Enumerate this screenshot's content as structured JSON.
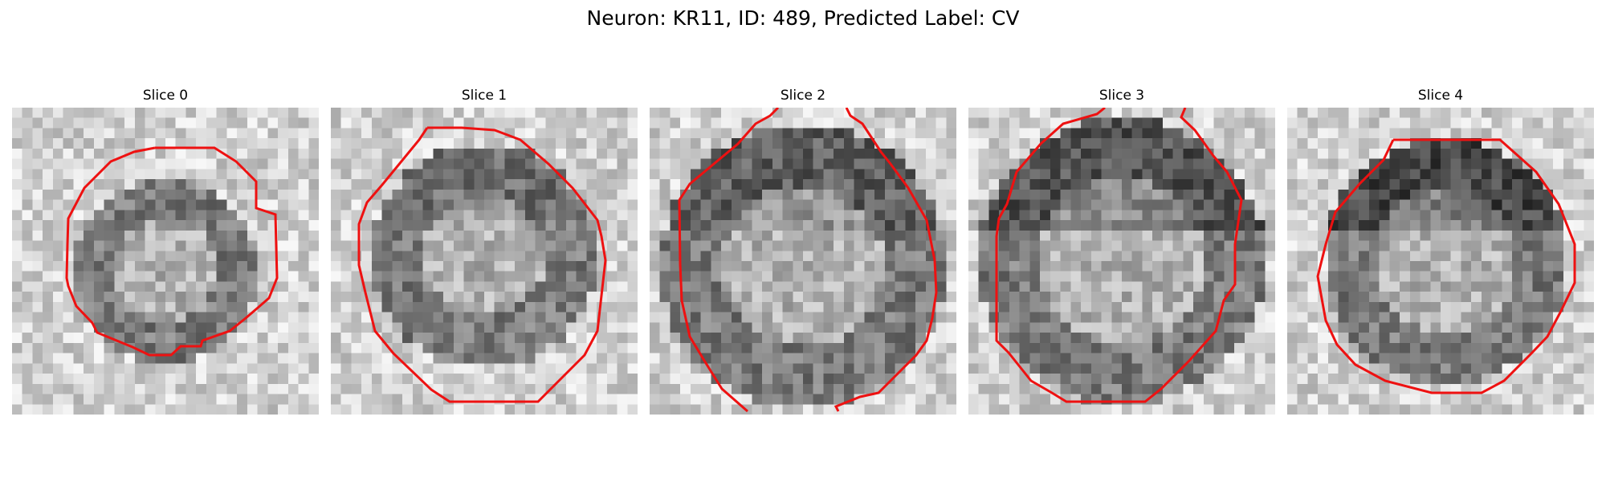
{
  "figure": {
    "title": "Neuron: KR11, ID: 489, Predicted Label: CV"
  },
  "contour_color": "#ee1111",
  "image_style": "grayscale-grid",
  "slices": [
    {
      "title": "Slice 0"
    },
    {
      "title": "Slice 1"
    },
    {
      "title": "Slice 2"
    },
    {
      "title": "Slice 3"
    },
    {
      "title": "Slice 4"
    }
  ]
}
